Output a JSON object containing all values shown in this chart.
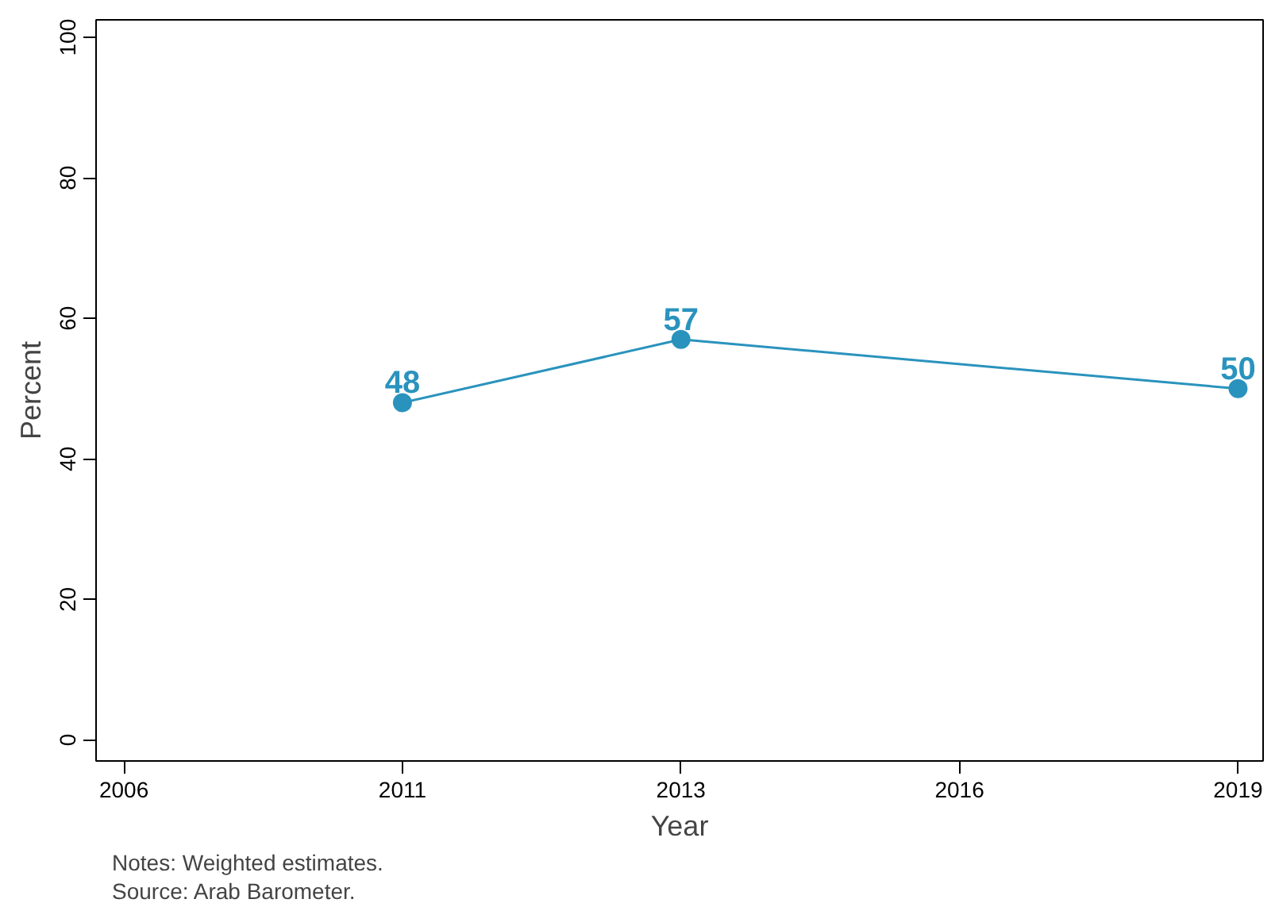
{
  "chart_data": {
    "type": "line",
    "xlabel": "Year",
    "ylabel": "Percent",
    "categories": [
      "2006",
      "2011",
      "2013",
      "2016",
      "2019"
    ],
    "series": [
      {
        "color": "#2a93bd",
        "values": [
          null,
          48,
          57,
          null,
          50
        ]
      }
    ],
    "ylim": [
      -3,
      102.5
    ],
    "yticks": [
      0,
      20,
      40,
      60,
      80,
      100
    ],
    "marker": "circle",
    "line_style": "solid",
    "data_labels": true,
    "grid": false,
    "annotations": [
      "Notes: Weighted estimates.",
      "Source: Arab Barometer."
    ]
  }
}
